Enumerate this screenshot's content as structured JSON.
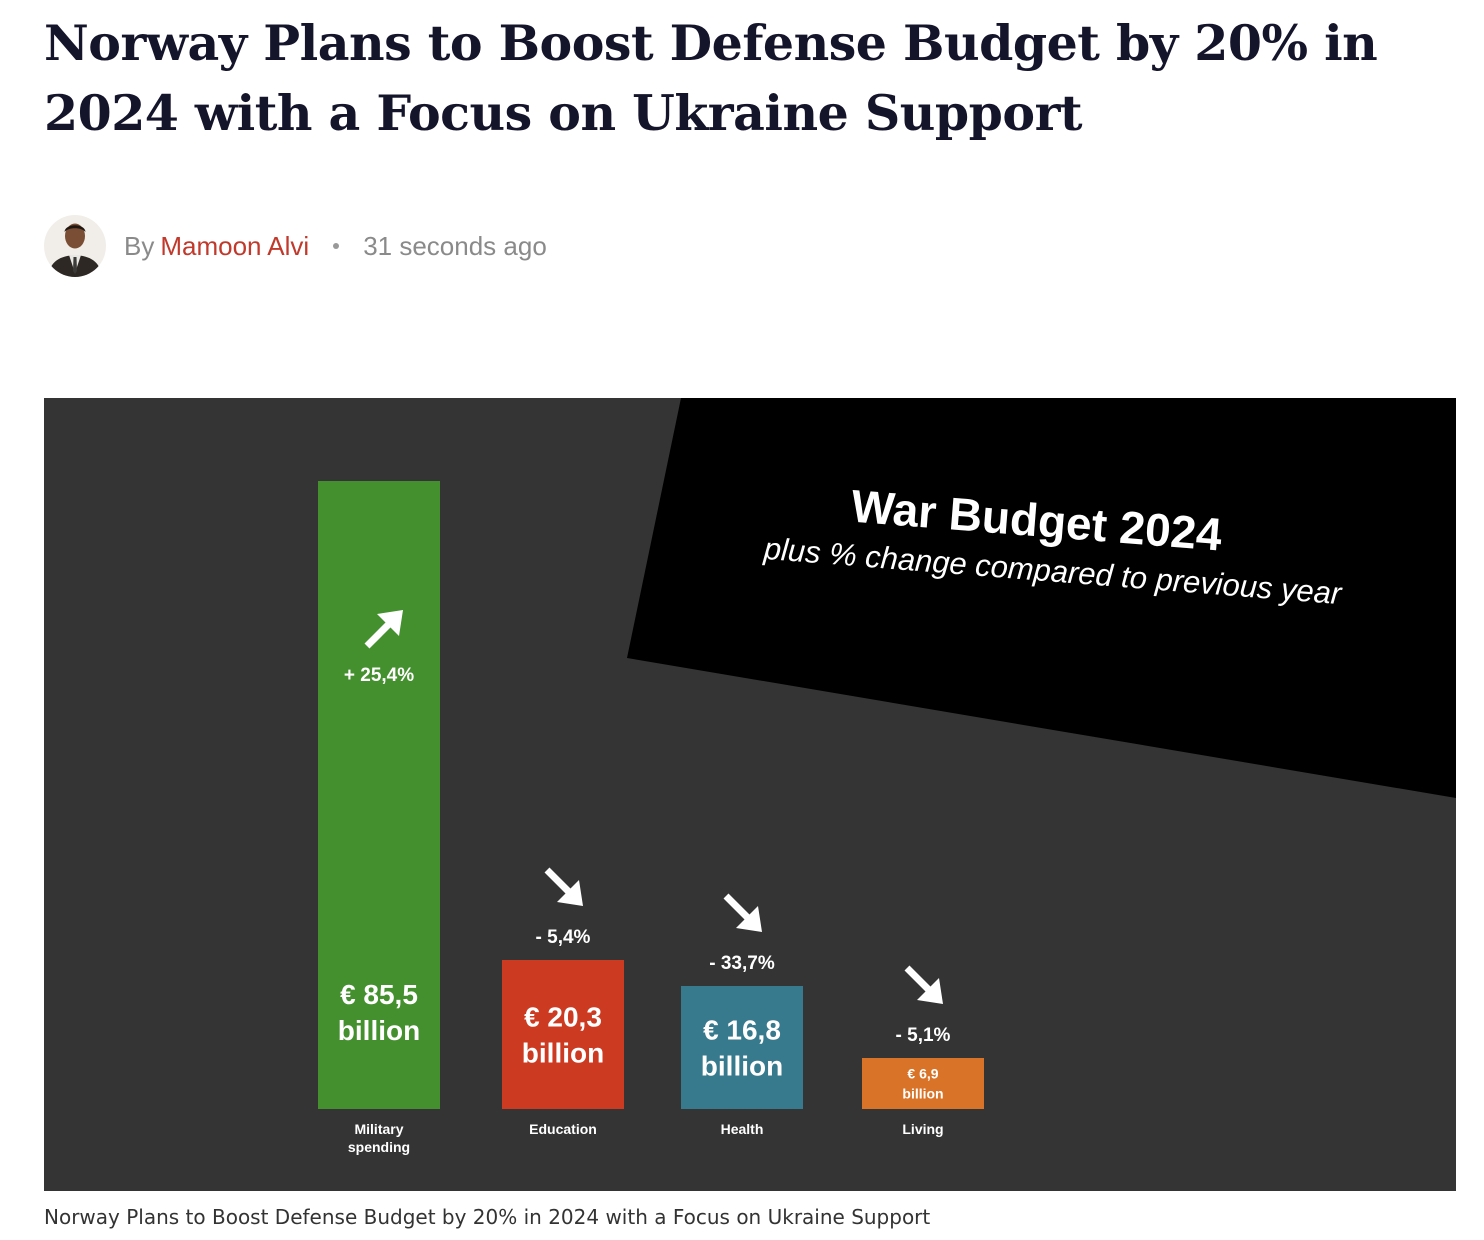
{
  "article": {
    "title": "Norway Plans to Boost Defense Budget by 20% in 2024 with a Focus on Ukraine Support",
    "byline": {
      "by_label": "By",
      "author": "Mamoon Alvi",
      "time": "31 seconds ago"
    },
    "caption": "Norway Plans to Boost Defense Budget by 20% in 2024 with a Focus on Ukraine Support"
  },
  "chart_data": {
    "type": "bar",
    "title": "War Budget 2024",
    "subtitle": "plus % change compared to previous year",
    "categories": [
      "Military spending",
      "Education",
      "Health",
      "Living"
    ],
    "category_lines": [
      [
        "Military",
        "spending"
      ],
      [
        "Education"
      ],
      [
        "Health"
      ],
      [
        "Living"
      ]
    ],
    "values": [
      85.5,
      20.3,
      16.8,
      6.9
    ],
    "value_labels": [
      [
        "€ 85,5",
        "billion"
      ],
      [
        "€ 20,3",
        "billion"
      ],
      [
        "€ 16,8",
        "billion"
      ],
      [
        "€ 6,9",
        "billion"
      ]
    ],
    "changes": [
      "+ 25,4%",
      "- 5,4%",
      "- 33,7%",
      "- 5,1%"
    ],
    "change_direction": [
      "up",
      "down",
      "down",
      "down"
    ],
    "colors": [
      "#45902e",
      "#cd3a22",
      "#377a8e",
      "#d87328"
    ],
    "background_color": "#343434",
    "banner_color": "#000000",
    "unit": "billion €",
    "ylim": [
      0,
      85.5
    ],
    "axes_visible": false,
    "legend": "none"
  }
}
